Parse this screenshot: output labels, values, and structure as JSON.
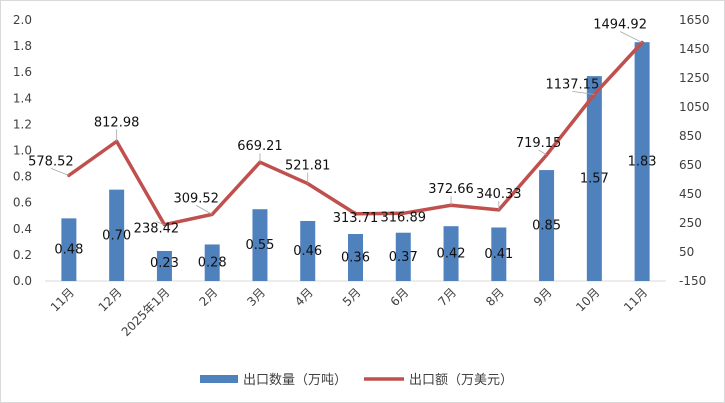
{
  "chart_data": {
    "type": "bar+line",
    "categories": [
      "11月",
      "12月",
      "2025年1月",
      "2月",
      "3月",
      "4月",
      "5月",
      "6月",
      "7月",
      "8月",
      "9月",
      "10月",
      "11月"
    ],
    "series": [
      {
        "name": "出口数量（万吨）",
        "type": "bar",
        "axis": "left",
        "values": [
          0.48,
          0.7,
          0.23,
          0.28,
          0.55,
          0.46,
          0.36,
          0.37,
          0.42,
          0.41,
          0.85,
          1.57,
          1.83
        ],
        "labels": [
          "0.48",
          "0.70",
          "0.23",
          "0.28",
          "0.55",
          "0.46",
          "0.36",
          "0.37",
          "0.42",
          "0.41",
          "0.85",
          "1.57",
          "1.83"
        ],
        "color": "#4f81bd"
      },
      {
        "name": "出口额（万美元）",
        "type": "line",
        "axis": "right",
        "values": [
          578.52,
          812.98,
          238.42,
          309.52,
          669.21,
          521.81,
          313.71,
          316.89,
          372.66,
          340.33,
          719.15,
          1137.15,
          1494.92
        ],
        "labels": [
          "578.52",
          "812.98",
          "238.42",
          "309.52",
          "669.21",
          "521.81",
          "313.71",
          "316.89",
          "372.66",
          "340.33",
          "719.15",
          "1137.15",
          "1494.92"
        ],
        "color": "#c0504d"
      }
    ],
    "y_left": {
      "min": 0,
      "max": 2.0,
      "ticks": [
        "0.0",
        "0.2",
        "0.4",
        "0.6",
        "0.8",
        "1.0",
        "1.2",
        "1.4",
        "1.6",
        "1.8",
        "2.0"
      ]
    },
    "y_right": {
      "min": -150,
      "max": 1650,
      "ticks": [
        "-150",
        "50",
        "250",
        "450",
        "650",
        "850",
        "1050",
        "1250",
        "1450",
        "1650"
      ]
    },
    "grid": false,
    "legend_position": "bottom"
  }
}
